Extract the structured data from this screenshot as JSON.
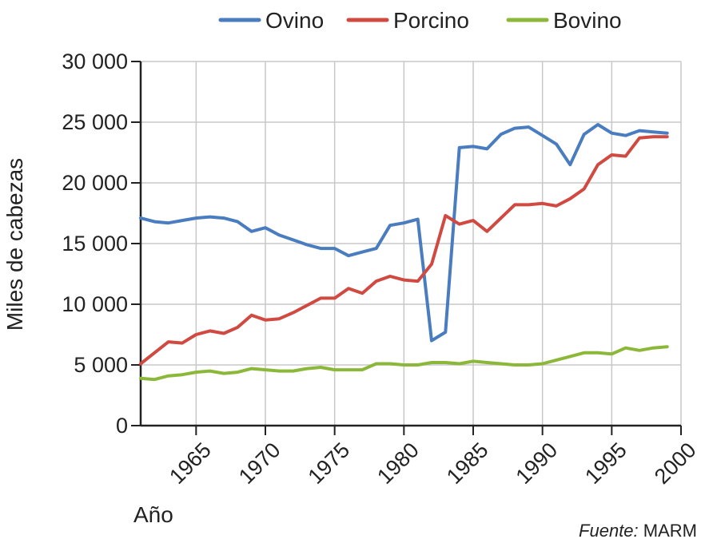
{
  "chart_data": {
    "type": "line",
    "xlabel": "Año",
    "ylabel": "Miles de cabezas",
    "xlim": [
      1961,
      2000
    ],
    "ylim": [
      0,
      30000
    ],
    "xticks": [
      1965,
      1970,
      1975,
      1980,
      1985,
      1990,
      1995,
      2000
    ],
    "yticks": [
      0,
      5000,
      10000,
      15000,
      20000,
      25000,
      30000
    ],
    "ytick_labels": [
      "0",
      "5 000",
      "10 000",
      "15 000",
      "20 000",
      "25 000",
      "30 000"
    ],
    "grid": "horizontal",
    "legend": "top",
    "source_label": "Fuente:",
    "source_value": "MARM",
    "x": [
      1961,
      1962,
      1963,
      1964,
      1965,
      1966,
      1967,
      1968,
      1969,
      1970,
      1971,
      1972,
      1973,
      1974,
      1975,
      1976,
      1977,
      1978,
      1979,
      1980,
      1981,
      1982,
      1983,
      1984,
      1985,
      1986,
      1987,
      1988,
      1989,
      1990,
      1991,
      1992,
      1993,
      1994,
      1995,
      1996,
      1997,
      1998,
      1999
    ],
    "series": [
      {
        "name": "Ovino",
        "color": "#4a7cc0",
        "values": [
          17100,
          16800,
          16700,
          16900,
          17100,
          17200,
          17100,
          16800,
          16000,
          16300,
          15700,
          15300,
          14900,
          14600,
          14600,
          14000,
          14300,
          14600,
          16500,
          16700,
          17000,
          7000,
          7700,
          22900,
          23000,
          22800,
          24000,
          24500,
          24600,
          23900,
          23200,
          21500,
          24000,
          24800,
          24100,
          23900,
          24300,
          24200,
          24100
        ]
      },
      {
        "name": "Porcino",
        "color": "#d04a42",
        "values": [
          5100,
          6000,
          6900,
          6800,
          7500,
          7800,
          7600,
          8100,
          9100,
          8700,
          8800,
          9300,
          9900,
          10500,
          10500,
          11300,
          10900,
          11900,
          12300,
          12000,
          11900,
          13300,
          17300,
          16600,
          16900,
          16000,
          17100,
          18200,
          18200,
          18300,
          18100,
          18700,
          19500,
          21500,
          22300,
          22200,
          23700,
          23800,
          23800
        ]
      },
      {
        "name": "Bovino",
        "color": "#8cb83a",
        "values": [
          3900,
          3800,
          4100,
          4200,
          4400,
          4500,
          4300,
          4400,
          4700,
          4600,
          4500,
          4500,
          4700,
          4800,
          4600,
          4600,
          4600,
          5100,
          5100,
          5000,
          5000,
          5200,
          5200,
          5100,
          5300,
          5200,
          5100,
          5000,
          5000,
          5100,
          5400,
          5700,
          6000,
          6000,
          5900,
          6400,
          6200,
          6400,
          6500
        ]
      }
    ]
  }
}
